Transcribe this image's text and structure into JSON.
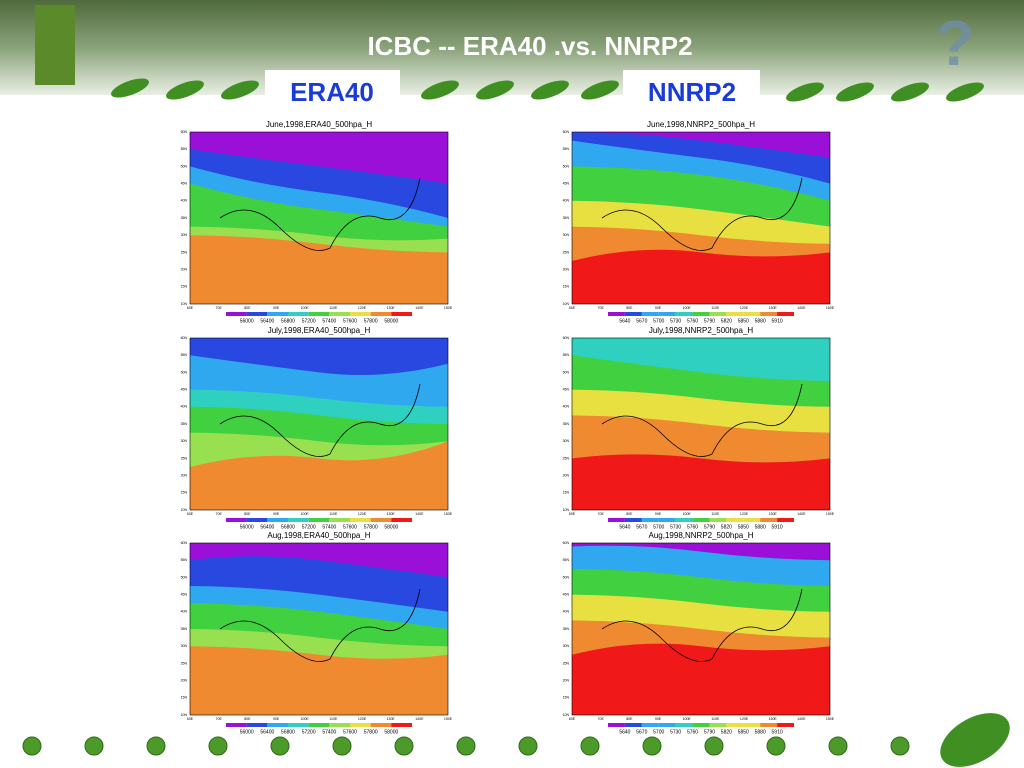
{
  "header": {
    "title": "ICBC --  ERA40 .vs. NNRP2",
    "left_label": "ERA40",
    "right_label": "NNRP2",
    "icon": "?"
  },
  "lat_labels": [
    "60N",
    "55N",
    "50N",
    "45N",
    "40N",
    "35N",
    "30N",
    "25N",
    "20N",
    "15N",
    "10N"
  ],
  "lon_labels": [
    "60E",
    "70E",
    "80E",
    "90E",
    "100E",
    "110E",
    "120E",
    "130E",
    "140E",
    "150E"
  ],
  "panels": [
    {
      "title": "June,1998,ERA40_500hpa_H",
      "colorbar_labels": [
        "56000",
        "56400",
        "56800",
        "57200",
        "57400",
        "57600",
        "57800",
        "58000"
      ]
    },
    {
      "title": "June,1998,NNRP2_500hpa_H",
      "colorbar_labels": [
        "5640",
        "5670",
        "5700",
        "5730",
        "5760",
        "5790",
        "5820",
        "5850",
        "5880",
        "5910"
      ]
    },
    {
      "title": "July,1998,ERA40_500hpa_H",
      "colorbar_labels": [
        "56000",
        "56400",
        "56800",
        "57200",
        "57400",
        "57600",
        "57800",
        "58000"
      ]
    },
    {
      "title": "July,1998,NNRP2_500hpa_H",
      "colorbar_labels": [
        "5640",
        "5670",
        "5700",
        "5730",
        "5760",
        "5790",
        "5820",
        "5850",
        "5880",
        "5910"
      ]
    },
    {
      "title": "Aug,1998,ERA40_500hpa_H",
      "colorbar_labels": [
        "56000",
        "56400",
        "56800",
        "57200",
        "57400",
        "57600",
        "57800",
        "58000"
      ]
    },
    {
      "title": "Aug,1998,NNRP2_500hpa_H",
      "colorbar_labels": [
        "5640",
        "5670",
        "5700",
        "5730",
        "5760",
        "5790",
        "5820",
        "5850",
        "5880",
        "5910"
      ]
    }
  ]
}
